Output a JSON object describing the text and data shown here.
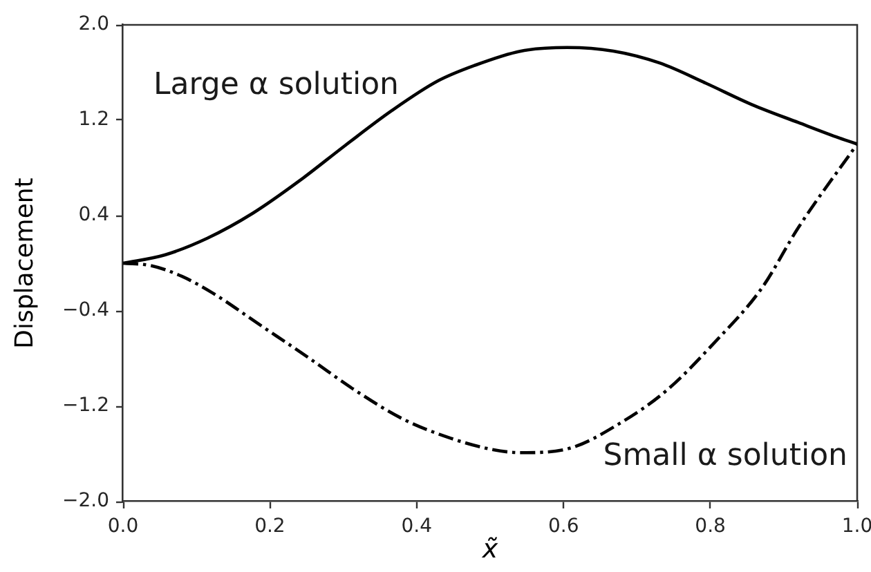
{
  "chart_data": {
    "type": "line",
    "xlabel": "x̃",
    "ylabel": "Displacement",
    "series": [
      {
        "name": "Large α solution",
        "color": "#000000",
        "line_style": "solid",
        "x": [
          0,
          0.057,
          0.115,
          0.177,
          0.24,
          0.303,
          0.366,
          0.429,
          0.479,
          0.542,
          0.605,
          0.668,
          0.731,
          0.794,
          0.857,
          0.92,
          0.976,
          1.0
        ],
        "values": [
          0,
          0.07,
          0.21,
          0.42,
          0.69,
          0.99,
          1.28,
          1.53,
          1.66,
          1.78,
          1.81,
          1.78,
          1.68,
          1.51,
          1.33,
          1.18,
          1.05,
          1.0
        ]
      },
      {
        "name": "Small α solution",
        "color": "#000000",
        "line_style": "dashdot",
        "x": [
          0,
          0.038,
          0.08,
          0.122,
          0.187,
          0.252,
          0.317,
          0.382,
          0.447,
          0.5,
          0.542,
          0.61,
          0.675,
          0.74,
          0.805,
          0.87,
          0.92,
          1.0
        ],
        "values": [
          0,
          -0.02,
          -0.11,
          -0.25,
          -0.52,
          -0.79,
          -1.07,
          -1.31,
          -1.47,
          -1.56,
          -1.59,
          -1.55,
          -1.35,
          -1.07,
          -0.67,
          -0.21,
          0.3,
          1.0
        ]
      }
    ],
    "xlim": [
      0,
      1
    ],
    "xticks": [
      {
        "value": 0,
        "label": "0.0"
      },
      0.2,
      0.4,
      0.6,
      0.8,
      {
        "value": 1,
        "label": "1.0"
      }
    ],
    "ylim": [
      -2,
      2
    ],
    "yticks": [
      {
        "value": -2,
        "label": "−2.0"
      },
      {
        "value": -1.2,
        "label": "−1.2"
      },
      {
        "value": -0.4,
        "label": "−0.4"
      },
      0.4,
      1.2,
      {
        "value": 2,
        "label": "2.0"
      }
    ],
    "grid": false,
    "legend": false,
    "marker": "none"
  }
}
